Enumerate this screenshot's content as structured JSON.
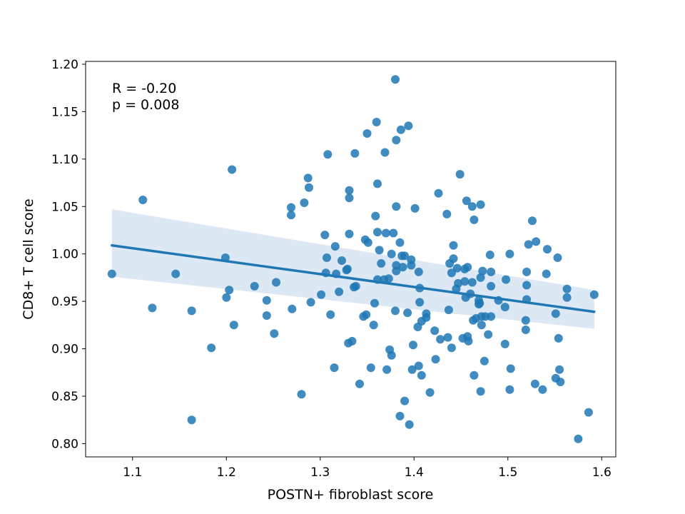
{
  "chart_data": {
    "type": "scatter",
    "title": "",
    "xlabel": "POSTN+ fibroblast score",
    "ylabel": "CD8+ T cell score",
    "xlim": [
      1.05,
      1.615
    ],
    "ylim": [
      0.786,
      1.203
    ],
    "xticks": [
      1.1,
      1.2,
      1.3,
      1.4,
      1.5,
      1.6
    ],
    "yticks": [
      0.8,
      0.85,
      0.9,
      0.95,
      1.0,
      1.05,
      1.1,
      1.15,
      1.2
    ],
    "xtick_labels": [
      "1.1",
      "1.2",
      "1.3",
      "1.4",
      "1.5",
      "1.6"
    ],
    "ytick_labels": [
      "0.80",
      "0.85",
      "0.90",
      "0.95",
      "1.00",
      "1.05",
      "1.10",
      "1.15",
      "1.20"
    ],
    "grid": false,
    "annotations": [
      "R = -0.20",
      "p = 0.008"
    ],
    "colors": {
      "points": "#1f77b4",
      "line": "#1f77b4",
      "band": "#dce8f3"
    },
    "regression": {
      "x": [
        1.078,
        1.592
      ],
      "y": [
        1.009,
        0.939
      ],
      "ci_upper": [
        1.047,
        0.962
      ],
      "ci_lower": [
        0.976,
        0.921
      ]
    },
    "points": [
      [
        1.078,
        0.979
      ],
      [
        1.111,
        1.057
      ],
      [
        1.121,
        0.943
      ],
      [
        1.146,
        0.979
      ],
      [
        1.163,
        0.94
      ],
      [
        1.163,
        0.825
      ],
      [
        1.184,
        0.901
      ],
      [
        1.199,
        0.996
      ],
      [
        1.2,
        0.954
      ],
      [
        1.203,
        0.962
      ],
      [
        1.206,
        1.089
      ],
      [
        1.208,
        0.925
      ],
      [
        1.23,
        0.966
      ],
      [
        1.243,
        0.951
      ],
      [
        1.243,
        0.935
      ],
      [
        1.251,
        0.916
      ],
      [
        1.253,
        0.97
      ],
      [
        1.269,
        1.049
      ],
      [
        1.269,
        1.041
      ],
      [
        1.27,
        0.942
      ],
      [
        1.28,
        0.852
      ],
      [
        1.283,
        1.054
      ],
      [
        1.287,
        1.08
      ],
      [
        1.288,
        1.07
      ],
      [
        1.29,
        0.949
      ],
      [
        1.301,
        0.957
      ],
      [
        1.305,
        1.02
      ],
      [
        1.306,
        0.98
      ],
      [
        1.307,
        0.996
      ],
      [
        1.308,
        1.105
      ],
      [
        1.311,
        0.936
      ],
      [
        1.315,
        0.88
      ],
      [
        1.316,
        1.008
      ],
      [
        1.317,
        0.979
      ],
      [
        1.32,
        0.96
      ],
      [
        1.323,
        0.993
      ],
      [
        1.328,
        0.983
      ],
      [
        1.33,
        0.906
      ],
      [
        1.329,
        0.984
      ],
      [
        1.331,
        1.067
      ],
      [
        1.331,
        1.059
      ],
      [
        1.331,
        1.021
      ],
      [
        1.334,
        0.908
      ],
      [
        1.336,
        0.965
      ],
      [
        1.337,
        1.106
      ],
      [
        1.338,
        0.966
      ],
      [
        1.342,
        0.863
      ],
      [
        1.346,
        0.934
      ],
      [
        1.348,
        1.015
      ],
      [
        1.349,
        0.936
      ],
      [
        1.35,
        1.127
      ],
      [
        1.351,
        1.012
      ],
      [
        1.354,
        0.88
      ],
      [
        1.357,
        0.925
      ],
      [
        1.358,
        0.948
      ],
      [
        1.359,
        1.04
      ],
      [
        1.36,
        1.139
      ],
      [
        1.361,
        1.023
      ],
      [
        1.361,
        1.074
      ],
      [
        1.361,
        0.973
      ],
      [
        1.363,
        1.004
      ],
      [
        1.365,
        0.99
      ],
      [
        1.368,
        0.973
      ],
      [
        1.369,
        1.107
      ],
      [
        1.37,
        1.022
      ],
      [
        1.371,
        0.878
      ],
      [
        1.373,
        0.974
      ],
      [
        1.374,
        0.899
      ],
      [
        1.376,
        1.0
      ],
      [
        1.376,
        0.893
      ],
      [
        1.378,
        1.022
      ],
      [
        1.38,
        0.94
      ],
      [
        1.38,
        1.184
      ],
      [
        1.381,
        1.05
      ],
      [
        1.381,
        1.12
      ],
      [
        1.381,
        0.988
      ],
      [
        1.381,
        0.982
      ],
      [
        1.385,
        1.012
      ],
      [
        1.385,
        0.829
      ],
      [
        1.386,
        1.131
      ],
      [
        1.387,
        0.998
      ],
      [
        1.388,
        0.986
      ],
      [
        1.39,
        0.998
      ],
      [
        1.39,
        0.845
      ],
      [
        1.393,
        0.938
      ],
      [
        1.394,
        1.135
      ],
      [
        1.395,
        0.82
      ],
      [
        1.397,
        0.994
      ],
      [
        1.397,
        0.988
      ],
      [
        1.398,
        0.878
      ],
      [
        1.399,
        0.904
      ],
      [
        1.401,
        1.048
      ],
      [
        1.404,
        0.923
      ],
      [
        1.405,
        0.882
      ],
      [
        1.405,
        0.981
      ],
      [
        1.406,
        0.949
      ],
      [
        1.406,
        0.964
      ],
      [
        1.408,
        0.929
      ],
      [
        1.408,
        0.872
      ],
      [
        1.413,
        0.937
      ],
      [
        1.413,
        0.933
      ],
      [
        1.417,
        0.854
      ],
      [
        1.422,
        0.919
      ],
      [
        1.423,
        0.889
      ],
      [
        1.426,
        1.064
      ],
      [
        1.428,
        0.91
      ],
      [
        1.435,
        1.042
      ],
      [
        1.436,
        0.912
      ],
      [
        1.437,
        0.941
      ],
      [
        1.438,
        0.99
      ],
      [
        1.44,
        0.98
      ],
      [
        1.44,
        0.901
      ],
      [
        1.442,
        1.009
      ],
      [
        1.442,
        0.995
      ],
      [
        1.445,
        0.963
      ],
      [
        1.446,
        0.985
      ],
      [
        1.447,
        0.969
      ],
      [
        1.449,
        1.084
      ],
      [
        1.452,
        0.911
      ],
      [
        1.454,
        0.971
      ],
      [
        1.454,
        0.984
      ],
      [
        1.455,
        0.954
      ],
      [
        1.456,
        1.056
      ],
      [
        1.457,
        0.986
      ],
      [
        1.457,
        0.913
      ],
      [
        1.458,
        0.908
      ],
      [
        1.46,
        0.958
      ],
      [
        1.462,
        0.97
      ],
      [
        1.462,
        1.05
      ],
      [
        1.463,
        0.93
      ],
      [
        1.464,
        0.872
      ],
      [
        1.464,
        1.036
      ],
      [
        1.466,
        0.932
      ],
      [
        1.469,
        0.951
      ],
      [
        1.469,
        0.947
      ],
      [
        1.47,
        0.948
      ],
      [
        1.471,
        0.975
      ],
      [
        1.471,
        0.855
      ],
      [
        1.471,
        1.052
      ],
      [
        1.472,
        0.934
      ],
      [
        1.472,
        0.925
      ],
      [
        1.473,
        0.982
      ],
      [
        1.475,
        0.887
      ],
      [
        1.476,
        0.934
      ],
      [
        1.479,
        0.915
      ],
      [
        1.481,
        0.999
      ],
      [
        1.482,
        0.981
      ],
      [
        1.482,
        0.966
      ],
      [
        1.482,
        0.934
      ],
      [
        1.49,
        0.951
      ],
      [
        1.497,
        0.944
      ],
      [
        1.497,
        0.905
      ],
      [
        1.498,
        0.973
      ],
      [
        1.502,
        0.857
      ],
      [
        1.502,
        1.0
      ],
      [
        1.503,
        0.879
      ],
      [
        1.519,
        0.93
      ],
      [
        1.519,
        0.92
      ],
      [
        1.52,
        0.981
      ],
      [
        1.52,
        0.967
      ],
      [
        1.52,
        0.952
      ],
      [
        1.522,
        1.01
      ],
      [
        1.526,
        1.035
      ],
      [
        1.529,
        0.863
      ],
      [
        1.53,
        1.013
      ],
      [
        1.537,
        0.857
      ],
      [
        1.541,
        0.979
      ],
      [
        1.542,
        1.005
      ],
      [
        1.551,
        0.937
      ],
      [
        1.551,
        0.869
      ],
      [
        1.553,
        0.996
      ],
      [
        1.554,
        0.911
      ],
      [
        1.555,
        0.878
      ],
      [
        1.556,
        0.865
      ],
      [
        1.563,
        0.954
      ],
      [
        1.563,
        0.963
      ],
      [
        1.575,
        0.805
      ],
      [
        1.586,
        0.833
      ],
      [
        1.592,
        0.957
      ]
    ]
  }
}
